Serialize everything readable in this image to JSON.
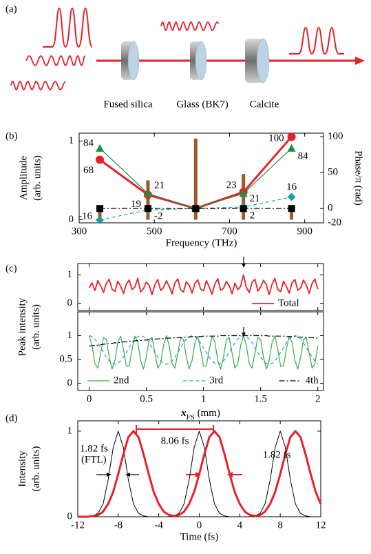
{
  "diagram": {
    "panel_label": "(a)",
    "components": [
      "Fused silica",
      "Glass (BK7)",
      "Calcite"
    ]
  },
  "chart_data": [
    {
      "type": "line",
      "panel_label": "(b)",
      "xlabel": "Frequency (THz)",
      "ylabel": [
        "Amplitude",
        "(arb. units)"
      ],
      "y2label": "Phase/π (rad)",
      "x": [
        355,
        483,
        610,
        737,
        865
      ],
      "xlim": [
        300,
        950
      ],
      "xticks": [
        300,
        500,
        700,
        900
      ],
      "ylim": [
        -0.04,
        1.1
      ],
      "yticks": [
        0,
        1
      ],
      "y2lim": [
        -20,
        105
      ],
      "y2ticks": [
        -20,
        0,
        50,
        100
      ],
      "series": [
        {
          "color": "#9c5a28",
          "style": "stem",
          "values": [
            0.17,
            0.5,
            1.03,
            0.58,
            0.15
          ]
        },
        {
          "color": "#e8202a",
          "axis": "y2",
          "marker": "circle",
          "linewidth": 3,
          "values": [
            68,
            19,
            0,
            23,
            100
          ],
          "value_labels": [
            "68",
            "19",
            null,
            "23",
            "100"
          ]
        },
        {
          "color": "#1e8f3e",
          "axis": "y2",
          "marker": "triangle",
          "linewidth": 1.2,
          "values": [
            84,
            21,
            0,
            21,
            84
          ],
          "value_labels": [
            "84",
            "21",
            null,
            "21",
            "84"
          ]
        },
        {
          "color": "#1a9fa6",
          "axis": "y2",
          "marker": "diamond",
          "dash": "dashed",
          "linewidth": 1.2,
          "values": [
            -16,
            -2,
            0,
            2,
            16
          ],
          "value_labels": [
            "-16",
            "-2",
            null,
            "2",
            "16"
          ]
        },
        {
          "color": "#000000",
          "axis": "y2",
          "marker": "square",
          "dash": "dashdot",
          "linewidth": 1.2,
          "values": [
            0,
            0,
            0,
            0,
            0
          ]
        }
      ]
    },
    {
      "type": "line",
      "panel_label": "(c)",
      "ylabel": [
        "Peak intensity",
        "(arb. units)"
      ],
      "x": [
        0,
        0.025,
        0.05,
        0.075,
        0.1,
        0.125,
        0.15,
        0.175,
        0.2,
        0.225,
        0.25,
        0.275,
        0.3,
        0.325,
        0.35,
        0.375,
        0.4,
        0.425,
        0.45,
        0.475,
        0.5,
        0.525,
        0.55,
        0.575,
        0.6,
        0.625,
        0.65,
        0.675,
        0.7,
        0.725,
        0.75,
        0.775,
        0.8,
        0.825,
        0.85,
        0.875,
        0.9,
        0.925,
        0.95,
        0.975,
        1,
        1.025,
        1.05,
        1.075,
        1.1,
        1.125,
        1.15,
        1.175,
        1.2,
        1.225,
        1.25,
        1.275,
        1.3,
        1.325,
        1.35,
        1.375,
        1.4,
        1.425,
        1.45,
        1.475,
        1.5,
        1.525,
        1.55,
        1.575,
        1.6,
        1.625,
        1.65,
        1.675,
        1.7,
        1.725,
        1.75,
        1.775,
        1.8,
        1.825,
        1.85,
        1.875,
        1.9,
        1.925,
        1.95,
        1.975,
        2
      ],
      "xlim": [
        -0.1,
        2.05
      ],
      "xticks": [
        0,
        0.5,
        1,
        1.5,
        2
      ],
      "xticklabels": false,
      "ylim": [
        -0.25,
        1.4
      ],
      "yticks": [
        0,
        1
      ],
      "legend": "lower right",
      "series": [
        {
          "name": "Total",
          "color": "#e8202a",
          "linewidth": 1.8,
          "values": [
            0.55,
            0.72,
            0.45,
            0.8,
            0.62,
            0.38,
            0.7,
            0.85,
            0.5,
            0.42,
            0.78,
            0.6,
            0.35,
            0.68,
            0.82,
            0.48,
            0.58,
            0.88,
            0.4,
            0.52,
            0.75,
            0.63,
            0.3,
            0.66,
            0.84,
            0.45,
            0.55,
            0.79,
            0.61,
            0.33,
            0.72,
            0.86,
            0.47,
            0.4,
            0.76,
            0.64,
            0.36,
            0.7,
            0.83,
            0.5,
            0.44,
            0.8,
            0.58,
            0.32,
            0.69,
            0.87,
            0.46,
            0.53,
            0.77,
            0.62,
            0.34,
            0.71,
            0.48,
            0.6,
            1.0,
            0.55,
            0.38,
            0.74,
            0.85,
            0.43,
            0.57,
            0.81,
            0.65,
            0.31,
            0.68,
            0.88,
            0.49,
            0.41,
            0.78,
            0.6,
            0.36,
            0.73,
            0.84,
            0.46,
            0.54,
            0.82,
            0.63,
            0.35,
            0.7,
            0.86,
            0.5
          ]
        }
      ]
    },
    {
      "type": "line",
      "xlabel": [
        "x",
        "FS",
        " (mm)"
      ],
      "x": [
        0,
        0.025,
        0.05,
        0.075,
        0.1,
        0.125,
        0.15,
        0.175,
        0.2,
        0.225,
        0.25,
        0.275,
        0.3,
        0.325,
        0.35,
        0.375,
        0.4,
        0.425,
        0.45,
        0.475,
        0.5,
        0.525,
        0.55,
        0.575,
        0.6,
        0.625,
        0.65,
        0.675,
        0.7,
        0.725,
        0.75,
        0.775,
        0.8,
        0.825,
        0.85,
        0.875,
        0.9,
        0.925,
        0.95,
        0.975,
        1,
        1.025,
        1.05,
        1.075,
        1.1,
        1.125,
        1.15,
        1.175,
        1.2,
        1.225,
        1.25,
        1.275,
        1.3,
        1.325,
        1.35,
        1.375,
        1.4,
        1.425,
        1.45,
        1.475,
        1.5,
        1.525,
        1.55,
        1.575,
        1.6,
        1.625,
        1.65,
        1.675,
        1.7,
        1.725,
        1.75,
        1.775,
        1.8,
        1.825,
        1.85,
        1.875,
        1.9,
        1.925,
        1.95,
        1.975,
        2
      ],
      "xlim": [
        -0.1,
        2.05
      ],
      "xticks": [
        0,
        0.5,
        1,
        1.5,
        2
      ],
      "ylim": [
        -0.15,
        1.5
      ],
      "yticks": [
        0,
        0.5,
        1
      ],
      "legend": "lower center",
      "series": [
        {
          "name": "2nd",
          "color": "#3aa64a",
          "linewidth": 1.2,
          "values": [
            1.0,
            0.79,
            0.41,
            0.32,
            0.63,
            0.96,
            0.92,
            0.55,
            0.3,
            0.48,
            0.86,
            0.99,
            0.71,
            0.36,
            0.36,
            0.71,
            0.99,
            0.86,
            0.48,
            0.3,
            0.55,
            0.92,
            0.96,
            0.63,
            0.32,
            0.41,
            0.79,
            1.0,
            0.79,
            0.41,
            0.32,
            0.63,
            0.96,
            0.92,
            0.55,
            0.3,
            0.48,
            0.86,
            0.99,
            0.71,
            0.36,
            0.36,
            0.71,
            0.99,
            0.86,
            0.48,
            0.3,
            0.55,
            0.92,
            0.96,
            0.63,
            0.32,
            0.41,
            0.79,
            1.0,
            0.79,
            0.41,
            0.32,
            0.63,
            0.96,
            0.92,
            0.55,
            0.3,
            0.48,
            0.86,
            0.99,
            0.71,
            0.36,
            0.36,
            0.71,
            0.99,
            0.86,
            0.48,
            0.3,
            0.55,
            0.92,
            0.96,
            0.63,
            0.32,
            0.41,
            0.79
          ]
        },
        {
          "name": "3rd",
          "color": "#1ba3b0",
          "dash": "dashed",
          "linewidth": 1.2,
          "values": [
            1.0,
            0.98,
            0.93,
            0.85,
            0.75,
            0.65,
            0.55,
            0.47,
            0.42,
            0.4,
            0.42,
            0.47,
            0.55,
            0.65,
            0.75,
            0.85,
            0.93,
            0.98,
            1.0,
            0.98,
            0.93,
            0.85,
            0.75,
            0.65,
            0.55,
            0.47,
            0.42,
            0.4,
            0.42,
            0.47,
            0.55,
            0.65,
            0.75,
            0.85,
            0.93,
            0.98,
            1.0,
            0.98,
            0.93,
            0.85,
            0.75,
            0.65,
            0.55,
            0.47,
            0.42,
            0.4,
            0.42,
            0.47,
            0.55,
            0.65,
            0.75,
            0.85,
            0.93,
            0.98,
            1.0,
            0.98,
            0.93,
            0.85,
            0.75,
            0.65,
            0.55,
            0.47,
            0.42,
            0.4,
            0.42,
            0.47,
            0.55,
            0.65,
            0.75,
            0.85,
            0.93,
            0.98,
            1.0,
            0.98,
            0.93,
            0.85,
            0.75,
            0.65,
            0.55,
            0.47,
            0.42
          ]
        },
        {
          "name": "4th",
          "color": "#000000",
          "dash": "dashdot",
          "linewidth": 1.2,
          "values": [
            0.78,
            0.79,
            0.8,
            0.8,
            0.81,
            0.82,
            0.83,
            0.83,
            0.84,
            0.85,
            0.85,
            0.86,
            0.87,
            0.87,
            0.88,
            0.89,
            0.89,
            0.9,
            0.9,
            0.91,
            0.91,
            0.92,
            0.92,
            0.93,
            0.93,
            0.94,
            0.94,
            0.95,
            0.95,
            0.95,
            0.96,
            0.96,
            0.96,
            0.97,
            0.97,
            0.97,
            0.98,
            0.98,
            0.98,
            0.98,
            0.99,
            0.99,
            0.99,
            0.99,
            0.99,
            0.99,
            1,
            1,
            1,
            1,
            1,
            1,
            1,
            1,
            1,
            1,
            1,
            1,
            1,
            1,
            1,
            1,
            1,
            0.99,
            0.99,
            0.99,
            0.99,
            0.99,
            0.99,
            0.98,
            0.98,
            0.98,
            0.98,
            0.97,
            0.97,
            0.97,
            0.96,
            0.96,
            0.96,
            0.95,
            0.95
          ]
        }
      ]
    },
    {
      "type": "line",
      "panel_label": "(d)",
      "xlabel": "Time (fs)",
      "ylabel": [
        "Intensity",
        "(arb. units)"
      ],
      "x": [
        -12,
        -11.5,
        -11,
        -10.5,
        -10,
        -9.5,
        -9,
        -8.5,
        -8,
        -7.5,
        -7,
        -6.5,
        -6,
        -5.5,
        -5,
        -4.5,
        -4,
        -3.5,
        -3,
        -2.5,
        -2,
        -1.5,
        -1,
        -0.5,
        0,
        0.5,
        1,
        1.5,
        2,
        2.5,
        3,
        3.5,
        4,
        4.5,
        5,
        5.5,
        6,
        6.5,
        7,
        7.5,
        8,
        8.5,
        9,
        9.5,
        10,
        10.5,
        11,
        11.5,
        12
      ],
      "xlim": [
        -12,
        12
      ],
      "xticks": [
        -12,
        -8,
        -4,
        0,
        4,
        8,
        12
      ],
      "ylim": [
        0,
        1.12
      ],
      "yticks": [
        0,
        1
      ],
      "annotations": [
        "1.82 fs",
        "(FTL)",
        "8.06 fs",
        "1.82 fs"
      ],
      "series": [
        {
          "color": "#000000",
          "linewidth": 1,
          "values": [
            0,
            0,
            0,
            0.01,
            0.04,
            0.15,
            0.43,
            0.81,
            1,
            0.81,
            0.43,
            0.15,
            0.04,
            0.01,
            0,
            0,
            0,
            0,
            0,
            0.01,
            0.04,
            0.15,
            0.43,
            0.81,
            1,
            0.81,
            0.43,
            0.15,
            0.04,
            0.01,
            0,
            0,
            0,
            0,
            0,
            0.01,
            0.04,
            0.15,
            0.43,
            0.81,
            1,
            0.81,
            0.43,
            0.15,
            0.04,
            0.01,
            0,
            0,
            0
          ]
        },
        {
          "color": "#e8202a",
          "linewidth": 3,
          "values": [
            0,
            0,
            0,
            0.01,
            0.02,
            0.06,
            0.15,
            0.29,
            0.5,
            0.73,
            0.93,
            1,
            0.93,
            0.73,
            0.5,
            0.29,
            0.15,
            0.06,
            0.02,
            0.01,
            0.02,
            0.06,
            0.15,
            0.29,
            0.5,
            0.73,
            0.93,
            1,
            0.93,
            0.73,
            0.5,
            0.29,
            0.15,
            0.06,
            0.02,
            0.01,
            0.02,
            0.06,
            0.15,
            0.29,
            0.5,
            0.73,
            0.93,
            1,
            0.93,
            0.73,
            0.5,
            0.29,
            0.15
          ]
        }
      ]
    }
  ]
}
